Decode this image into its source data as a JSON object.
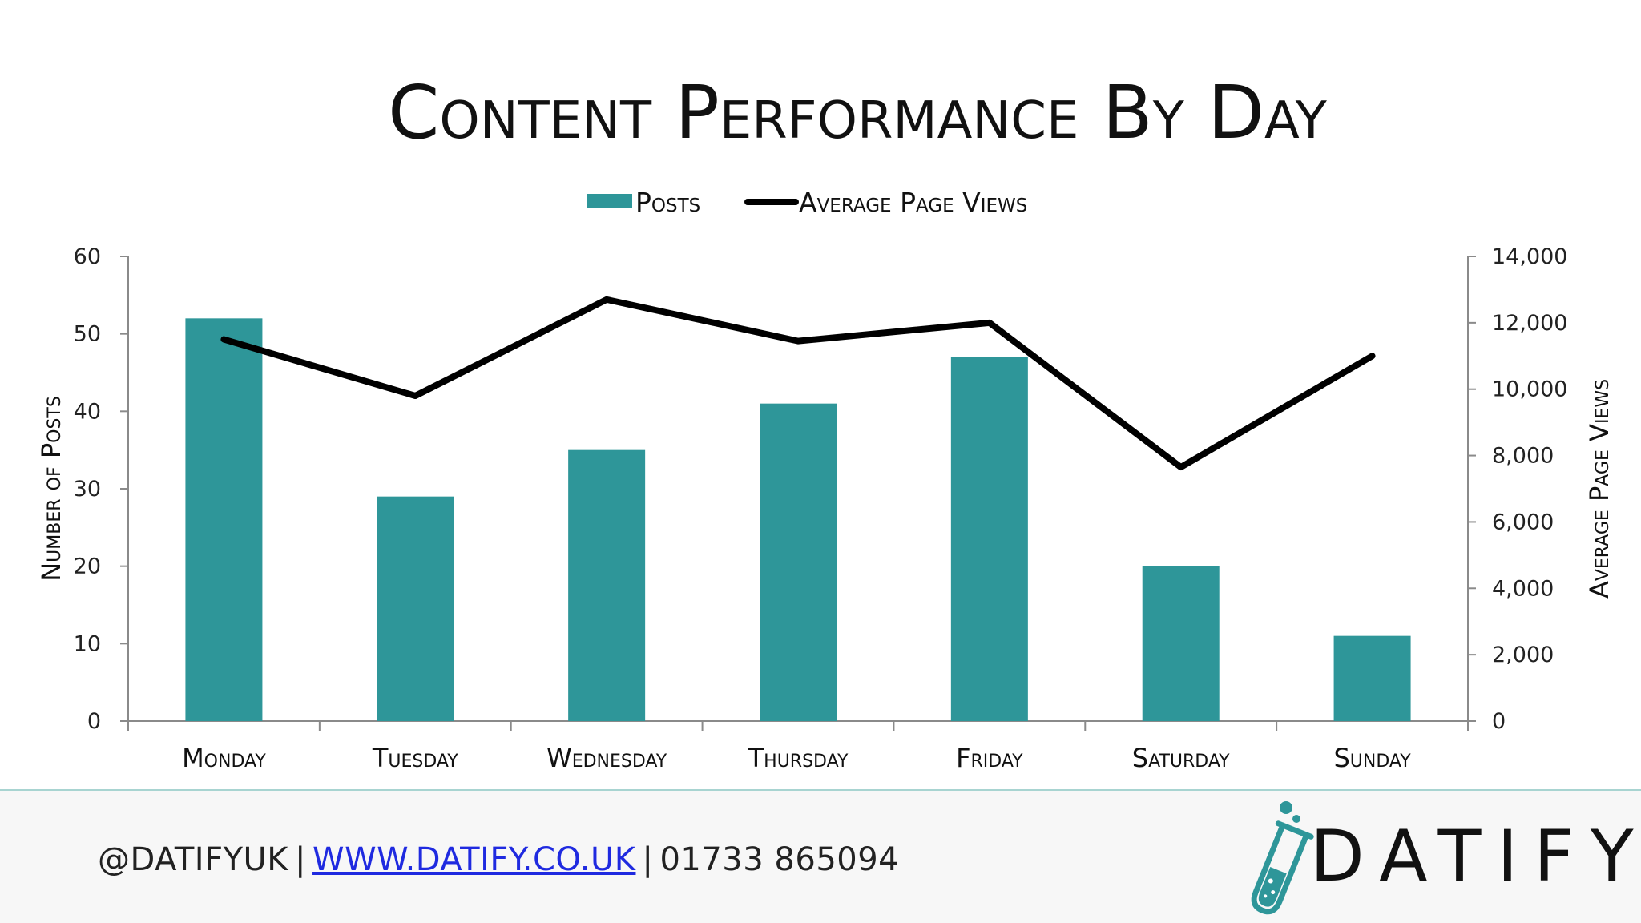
{
  "chart_data": {
    "type": "bar",
    "title": "Content Performance By Day",
    "categories": [
      "Monday",
      "Tuesday",
      "Wednesday",
      "Thursday",
      "Friday",
      "Saturday",
      "Sunday"
    ],
    "series": [
      {
        "name": "Posts",
        "type": "bar",
        "axis": "left",
        "color": "#2e9699",
        "values": [
          52,
          29,
          35,
          41,
          47,
          20,
          11
        ]
      },
      {
        "name": "Average Page Views",
        "type": "line",
        "axis": "right",
        "color": "#000000",
        "values": [
          11500,
          9800,
          12700,
          11450,
          12000,
          7650,
          11000
        ]
      }
    ],
    "ylabel": "Number of Posts",
    "ylim": [
      0,
      60
    ],
    "yticks": [
      0,
      10,
      20,
      30,
      40,
      50,
      60
    ],
    "ytick_labels": [
      "0",
      "10",
      "20",
      "30",
      "40",
      "50",
      "60"
    ],
    "y2label": "Average Page Views",
    "y2lim": [
      0,
      14000
    ],
    "y2ticks": [
      0,
      2000,
      4000,
      6000,
      8000,
      10000,
      12000,
      14000
    ],
    "y2tick_labels": [
      "0",
      "2,000",
      "4,000",
      "6,000",
      "8,000",
      "10,000",
      "12,000",
      "14,000"
    ],
    "legend_position": "top-center",
    "grid": false
  },
  "footer": {
    "handle": "@DATIFYUK",
    "separator": "|",
    "website": "WWW.DATIFY.CO.UK",
    "phone": "01733 865094",
    "brand": "DATIFY"
  },
  "colors": {
    "bar": "#2e9699",
    "line": "#000000",
    "axis": "#8a8a8a",
    "link": "#1f2ae0",
    "brand_teal": "#2e9699"
  }
}
